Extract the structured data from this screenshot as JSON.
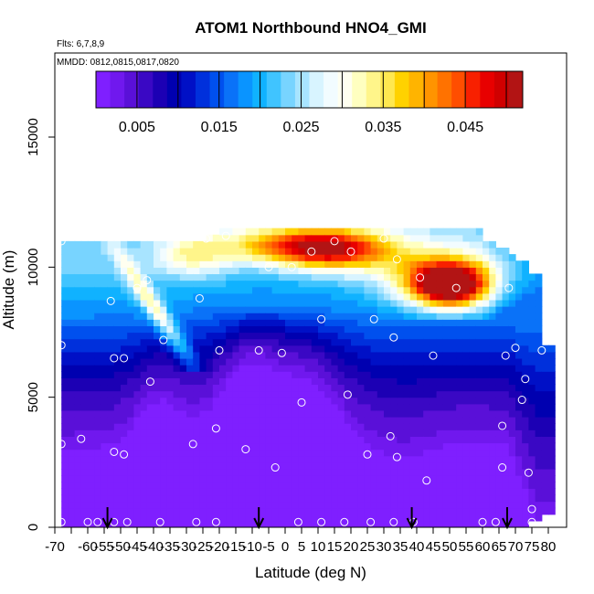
{
  "chart_data": {
    "type": "heatmap",
    "title": "ATOM1 Northbound HNO4_GMI",
    "subtitle_lines": [
      "Flts: 6,7,8,9",
      "MMDD: 0812,0815,0817,0820"
    ],
    "xlabel": "Latitude (deg N)",
    "ylabel": "Altitude (m)",
    "xlim": [
      -70,
      82
    ],
    "ylim": [
      0,
      17500
    ],
    "x_ticks": [
      -70,
      -65,
      -60,
      -55,
      -50,
      -45,
      -40,
      -35,
      -30,
      -25,
      -20,
      -15,
      -10,
      -5,
      0,
      5,
      10,
      15,
      20,
      25,
      30,
      35,
      40,
      45,
      50,
      55,
      60,
      65,
      70,
      75,
      80
    ],
    "x_tick_labels": [
      "-70",
      "",
      "-60",
      "-55",
      "-50",
      "-45",
      "-40",
      "-35",
      "-30",
      "-25",
      "-20",
      "-15",
      "-10",
      "-5",
      "0",
      "5",
      "10",
      "15",
      "20",
      "25",
      "30",
      "35",
      "40",
      "45",
      "50",
      "55",
      "60",
      "65",
      "70",
      "75",
      "80"
    ],
    "y_ticks": [
      0,
      5000,
      10000,
      15000
    ],
    "y_tick_labels": [
      "0",
      "5000",
      "10000",
      "15000"
    ],
    "colorbar": {
      "range": [
        0,
        0.052
      ],
      "tick_values": [
        0.005,
        0.015,
        0.025,
        0.035,
        0.045
      ],
      "tick_labels": [
        "0.005",
        "0.015",
        "0.025",
        "0.035",
        "0.045"
      ],
      "colors": [
        "#7f1fff",
        "#7018ee",
        "#5a10d8",
        "#3a08c4",
        "#1c00b4",
        "#0000b0",
        "#0010c6",
        "#0030dc",
        "#0050ee",
        "#0a72f8",
        "#0a94ff",
        "#10b2ff",
        "#40c4ff",
        "#78d4ff",
        "#a8e4ff",
        "#d8f4ff",
        "#f2fcff",
        "#fffff0",
        "#ffffc0",
        "#fff58a",
        "#ffe850",
        "#ffd200",
        "#ffb400",
        "#ff9400",
        "#ff7200",
        "#ff4e00",
        "#f82000",
        "#e80000",
        "#d00000",
        "#b21414"
      ],
      "divider_values": [
        0.0,
        0.005,
        0.01,
        0.015,
        0.02,
        0.025,
        0.03,
        0.035,
        0.04,
        0.045,
        0.05,
        0.052
      ]
    },
    "arrows_latitude": [
      -54,
      -8,
      38.5,
      67.5
    ],
    "surface_lat_range": [
      -68,
      80
    ],
    "observation_points": [
      [
        -68,
        11000
      ],
      [
        -68,
        7000
      ],
      [
        -68,
        3200
      ],
      [
        -68,
        200
      ],
      [
        -62,
        3400
      ],
      [
        -60,
        200
      ],
      [
        -57,
        200
      ],
      [
        -53,
        8700
      ],
      [
        -52,
        6500
      ],
      [
        -52,
        2900
      ],
      [
        -52,
        200
      ],
      [
        -49,
        6500
      ],
      [
        -49,
        2800
      ],
      [
        -48,
        200
      ],
      [
        -45,
        9200
      ],
      [
        -42,
        9500
      ],
      [
        -41,
        5600
      ],
      [
        -38,
        200
      ],
      [
        -37,
        7200
      ],
      [
        -28,
        3200
      ],
      [
        -27,
        200
      ],
      [
        -26,
        8800
      ],
      [
        -24,
        11100
      ],
      [
        -21,
        3800
      ],
      [
        -21,
        200
      ],
      [
        -20,
        6800
      ],
      [
        -18,
        11200
      ],
      [
        -12,
        3000
      ],
      [
        -8,
        6800
      ],
      [
        -5,
        10000
      ],
      [
        -3,
        2300
      ],
      [
        -1,
        6700
      ],
      [
        2,
        10000
      ],
      [
        4,
        200
      ],
      [
        5,
        4800
      ],
      [
        8,
        10600
      ],
      [
        11,
        8000
      ],
      [
        11,
        200
      ],
      [
        15,
        11000
      ],
      [
        18,
        200
      ],
      [
        19,
        5100
      ],
      [
        20,
        10600
      ],
      [
        25,
        2800
      ],
      [
        26,
        200
      ],
      [
        27,
        8000
      ],
      [
        30,
        11100
      ],
      [
        32,
        3500
      ],
      [
        33,
        7300
      ],
      [
        34,
        10300
      ],
      [
        34,
        2700
      ],
      [
        33,
        200
      ],
      [
        39,
        200
      ],
      [
        41,
        9600
      ],
      [
        43,
        1800
      ],
      [
        45,
        6600
      ],
      [
        52,
        9200
      ],
      [
        60,
        200
      ],
      [
        64,
        200
      ],
      [
        66,
        3900
      ],
      [
        66,
        2300
      ],
      [
        67,
        6600
      ],
      [
        68,
        9200
      ],
      [
        70,
        6900
      ],
      [
        72,
        4900
      ],
      [
        73,
        5700
      ],
      [
        74,
        2100
      ],
      [
        75,
        700
      ],
      [
        75,
        200
      ],
      [
        78,
        6800
      ],
      [
        80,
        200
      ]
    ]
  }
}
